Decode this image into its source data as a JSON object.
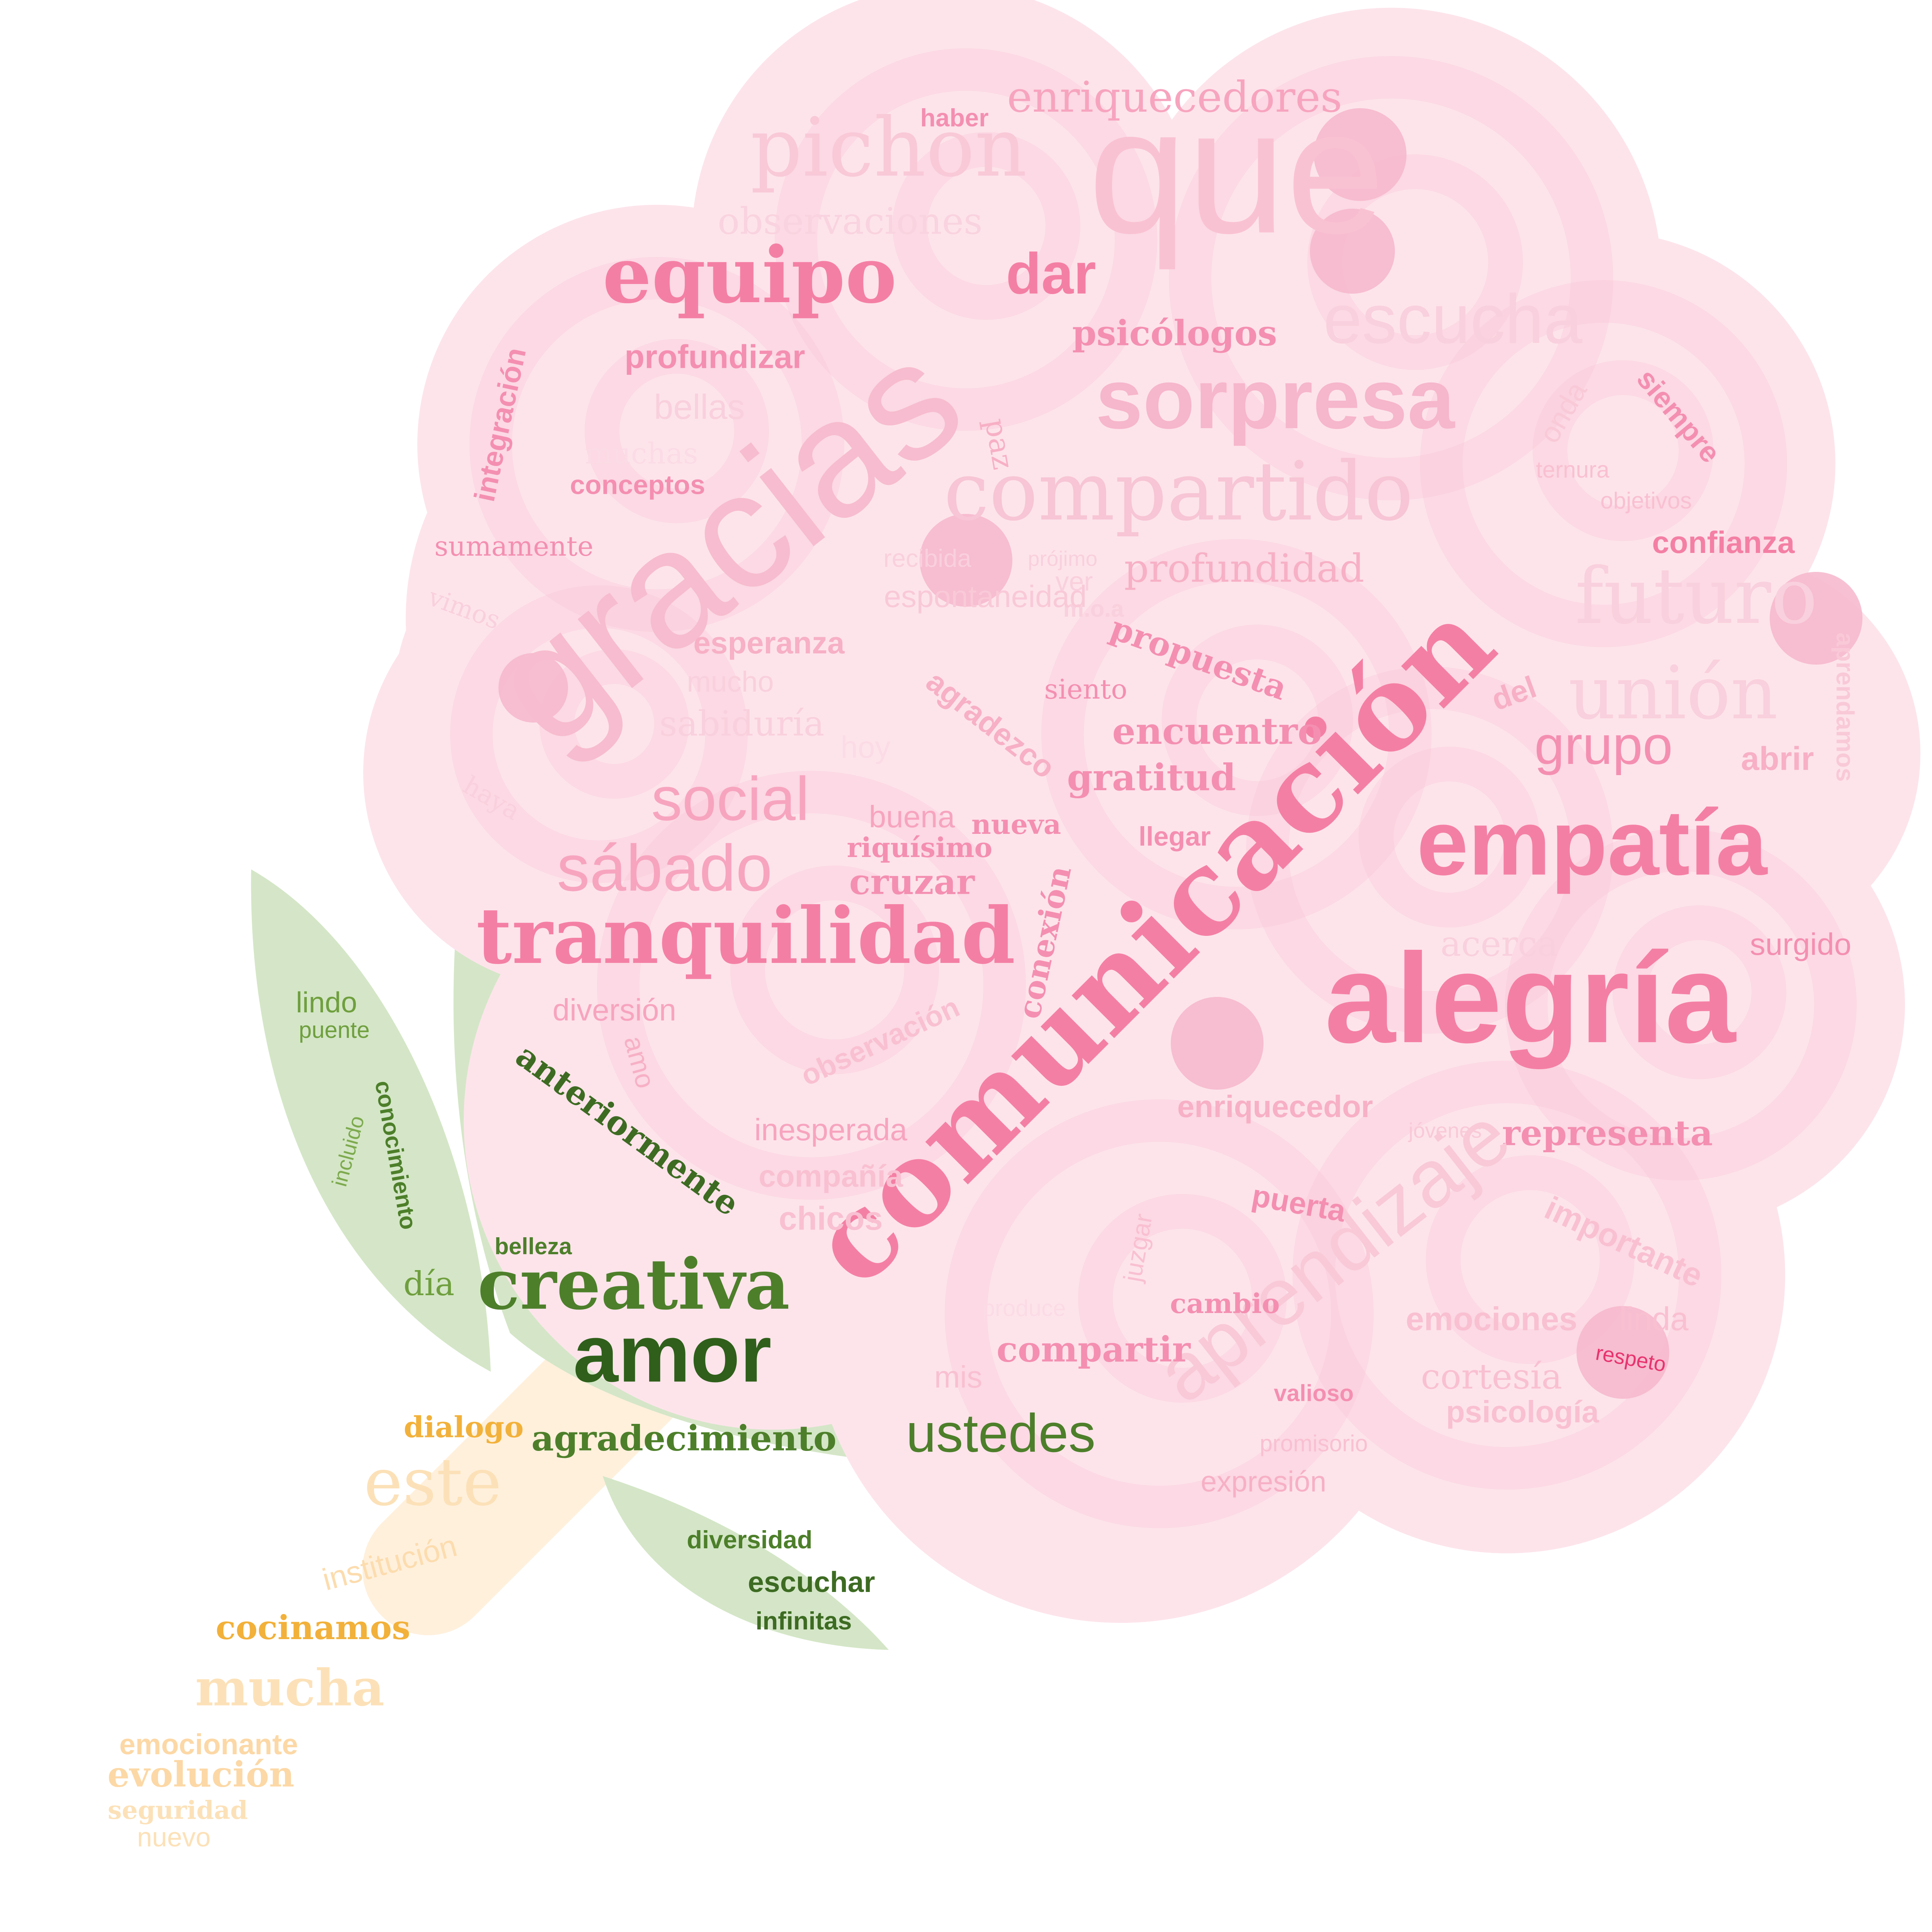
{
  "colors": {
    "pink_bloom": "#fde4eb",
    "pink_swirl": "#f9c5d6",
    "pink_dot": "#f6b6cb",
    "green_leaf": "#d4e6c7",
    "stem_orange": "#fff0dc"
  },
  "words": [
    {
      "text": "que",
      "color": "#f9c2d3",
      "font": "sans"
    },
    {
      "text": "gracias",
      "color": "#f7bccf",
      "font": "sans"
    },
    {
      "text": "comunicación",
      "color": "#f47fa5",
      "font": "serif"
    },
    {
      "text": "alegría",
      "color": "#f47fa5",
      "font": "sans"
    },
    {
      "text": "empatía",
      "color": "#f47fa5",
      "font": "sans"
    },
    {
      "text": "sorpresa",
      "color": "#f6b6cb",
      "font": "sans"
    },
    {
      "text": "compartido",
      "color": "#f7c5d5",
      "font": "serif"
    },
    {
      "text": "escucha",
      "color": "#f9d0dd",
      "font": "sans"
    },
    {
      "text": "equipo",
      "color": "#f47fa5",
      "font": "serif"
    },
    {
      "text": "pichon",
      "color": "#f9c9d8",
      "font": "serif"
    },
    {
      "text": "enriquecedores",
      "color": "#f7a4bf",
      "font": "serif"
    },
    {
      "text": "dar",
      "color": "#f47fa5",
      "font": "sans"
    },
    {
      "text": "psicólogos",
      "color": "#f48fb1",
      "font": "serif"
    },
    {
      "text": "observaciones",
      "color": "#f9d3df",
      "font": "serif"
    },
    {
      "text": "haber",
      "color": "#f48fb1",
      "font": "sans"
    },
    {
      "text": "profundizar",
      "color": "#f48fb1",
      "font": "sans"
    },
    {
      "text": "bellas",
      "color": "#f9d0dd",
      "font": "sans"
    },
    {
      "text": "muchas",
      "color": "#fbdbe5",
      "font": "serif"
    },
    {
      "text": "conceptos",
      "color": "#f48fb1",
      "font": "sans"
    },
    {
      "text": "integración",
      "color": "#f48fb1",
      "font": "sans"
    },
    {
      "text": "sumamente",
      "color": "#f48fb1",
      "font": "serif"
    },
    {
      "text": "vimos",
      "color": "#f9d0dd",
      "font": "serif"
    },
    {
      "text": "paz",
      "color": "#f7b0c6",
      "font": "serif"
    },
    {
      "text": "siempre",
      "color": "#f48fb1",
      "font": "sans"
    },
    {
      "text": "onda",
      "color": "#f9c9d8",
      "font": "sans"
    },
    {
      "text": "ternura",
      "color": "#f9c0d2",
      "font": "sans"
    },
    {
      "text": "objetivos",
      "color": "#f9c0d2",
      "font": "sans"
    },
    {
      "text": "confianza",
      "color": "#f47fa5",
      "font": "sans"
    },
    {
      "text": "futuro",
      "color": "#f9d0dd",
      "font": "serif"
    },
    {
      "text": "unión",
      "color": "#f9d0dd",
      "font": "serif"
    },
    {
      "text": "grupo",
      "color": "#f48fb1",
      "font": "sans"
    },
    {
      "text": "abrir",
      "color": "#f7b0c6",
      "font": "sans"
    },
    {
      "text": "aprendamos",
      "color": "#f9c9d8",
      "font": "sans"
    },
    {
      "text": "del",
      "color": "#f7b0c6",
      "font": "sans"
    },
    {
      "text": "recibida",
      "color": "#f9d0dd",
      "font": "sans"
    },
    {
      "text": "prójimo",
      "color": "#f9d0dd",
      "font": "sans"
    },
    {
      "text": "ver",
      "color": "#f9d0dd",
      "font": "sans"
    },
    {
      "text": "m.o.a",
      "color": "#f9d0dd",
      "font": "sans"
    },
    {
      "text": "profundidad",
      "color": "#f7b0c6",
      "font": "serif"
    },
    {
      "text": "espontaneidad",
      "color": "#f9c9d8",
      "font": "sans"
    },
    {
      "text": "propuesta",
      "color": "#f48fb1",
      "font": "serif"
    },
    {
      "text": "esperanza",
      "color": "#f7b0c6",
      "font": "sans"
    },
    {
      "text": "mucho",
      "color": "#f9d0dd",
      "font": "sans"
    },
    {
      "text": "agradezco",
      "color": "#f7b0c6",
      "font": "sans"
    },
    {
      "text": "siento",
      "color": "#f48fb1",
      "font": "serif"
    },
    {
      "text": "sabiduría",
      "color": "#f9d0dd",
      "font": "serif"
    },
    {
      "text": "hoy",
      "color": "#fbdbe5",
      "font": "sans"
    },
    {
      "text": "encuentro",
      "color": "#f48fb1",
      "font": "serif"
    },
    {
      "text": "gratitud",
      "color": "#f48fb1",
      "font": "serif"
    },
    {
      "text": "haya",
      "color": "#f9d0dd",
      "font": "serif"
    },
    {
      "text": "social",
      "color": "#f7a4bf",
      "font": "sans"
    },
    {
      "text": "buena",
      "color": "#f7a4bf",
      "font": "sans"
    },
    {
      "text": "nueva",
      "color": "#f48fb1",
      "font": "serif"
    },
    {
      "text": "riquísimo",
      "color": "#f48fb1",
      "font": "serif"
    },
    {
      "text": "llegar",
      "color": "#f48fb1",
      "font": "sans"
    },
    {
      "text": "sábado",
      "color": "#f7a4bf",
      "font": "sans"
    },
    {
      "text": "cruzar",
      "color": "#f48fb1",
      "font": "serif"
    },
    {
      "text": "conexión",
      "color": "#f48fb1",
      "font": "serif"
    },
    {
      "text": "tranquilidad",
      "color": "#f47fa5",
      "font": "serif"
    },
    {
      "text": "acerca",
      "color": "#f9d0dd",
      "font": "serif"
    },
    {
      "text": "surgido",
      "color": "#f48fb1",
      "font": "sans"
    },
    {
      "text": "diversión",
      "color": "#f7a4bf",
      "font": "sans"
    },
    {
      "text": "amo",
      "color": "#f7b0c6",
      "font": "sans"
    },
    {
      "text": "observación",
      "color": "#f9c0d2",
      "font": "sans"
    },
    {
      "text": "enriquecedor",
      "color": "#f7b0c6",
      "font": "sans"
    },
    {
      "text": "jóvenes",
      "color": "#f9c9d8",
      "font": "sans"
    },
    {
      "text": "representa",
      "color": "#f48fb1",
      "font": "serif"
    },
    {
      "text": "inesperada",
      "color": "#f7a4bf",
      "font": "sans"
    },
    {
      "text": "compañía",
      "color": "#f9c0d2",
      "font": "sans"
    },
    {
      "text": "chicos",
      "color": "#f9c0d2",
      "font": "sans"
    },
    {
      "text": "juzgar",
      "color": "#f9c0d2",
      "font": "sans"
    },
    {
      "text": "aprendizaje",
      "color": "#f9c9d8",
      "font": "sans"
    },
    {
      "text": "puerta",
      "color": "#f48fb1",
      "font": "sans"
    },
    {
      "text": "importante",
      "color": "#f9c0d2",
      "font": "sans"
    },
    {
      "text": "produce",
      "color": "#fbdbe5",
      "font": "sans"
    },
    {
      "text": "cambio",
      "color": "#f48fb1",
      "font": "serif"
    },
    {
      "text": "emociones",
      "color": "#f9c0d2",
      "font": "sans"
    },
    {
      "text": "linda",
      "color": "#f9c0d2",
      "font": "sans"
    },
    {
      "text": "respeto",
      "color": "#e8336f",
      "font": "sans"
    },
    {
      "text": "compartir",
      "color": "#f48fb1",
      "font": "serif"
    },
    {
      "text": "mis",
      "color": "#f9c0d2",
      "font": "sans"
    },
    {
      "text": "cortesía",
      "color": "#f9c0d2",
      "font": "serif"
    },
    {
      "text": "valioso",
      "color": "#f48fb1",
      "font": "sans"
    },
    {
      "text": "psicología",
      "color": "#f9c0d2",
      "font": "sans"
    },
    {
      "text": "promisorio",
      "color": "#f9c0d2",
      "font": "sans"
    },
    {
      "text": "expresión",
      "color": "#f7b0c6",
      "font": "sans"
    },
    {
      "text": "lindo",
      "color": "#6f9f3e",
      "font": "sans"
    },
    {
      "text": "puente",
      "color": "#6f9f3e",
      "font": "sans"
    },
    {
      "text": "conocimiento",
      "color": "#4d7f2a",
      "font": "sans"
    },
    {
      "text": "incluido",
      "color": "#7daa4e",
      "font": "sans"
    },
    {
      "text": "anteriormente",
      "color": "#3d6b22",
      "font": "serif"
    },
    {
      "text": "belleza",
      "color": "#4d7f2a",
      "font": "sans"
    },
    {
      "text": "día",
      "color": "#6f9f3e",
      "font": "serif"
    },
    {
      "text": "creativa",
      "color": "#4d7f2a",
      "font": "serif"
    },
    {
      "text": "amor",
      "color": "#2f5f1a",
      "font": "sans"
    },
    {
      "text": "dialogo",
      "color": "#f2b13a",
      "font": "serif"
    },
    {
      "text": "agradecimiento",
      "color": "#4d7f2a",
      "font": "serif"
    },
    {
      "text": "ustedes",
      "color": "#4d7f2a",
      "font": "sans"
    },
    {
      "text": "este",
      "color": "#fce1b8",
      "font": "serif"
    },
    {
      "text": "diversidad",
      "color": "#4d7f2a",
      "font": "sans"
    },
    {
      "text": "escuchar",
      "color": "#3d6b22",
      "font": "sans"
    },
    {
      "text": "infinitas",
      "color": "#3d6b22",
      "font": "sans"
    },
    {
      "text": "institución",
      "color": "#fcdcae",
      "font": "sans"
    },
    {
      "text": "cocinamos",
      "color": "#f2b13a",
      "font": "serif"
    },
    {
      "text": "mucha",
      "color": "#fce1b8",
      "font": "serif"
    },
    {
      "text": "emocionante",
      "color": "#fcd8a6",
      "font": "sans"
    },
    {
      "text": "evolución",
      "color": "#fcd8a6",
      "font": "serif"
    },
    {
      "text": "seguridad",
      "color": "#fce1b8",
      "font": "serif"
    },
    {
      "text": "nuevo",
      "color": "#fce1b8",
      "font": "sans"
    }
  ]
}
